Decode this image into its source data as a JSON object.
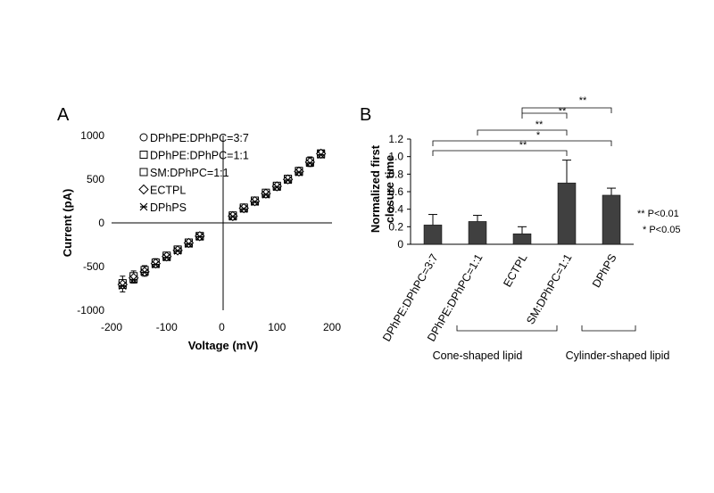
{
  "chart_data": [
    {
      "type": "scatter",
      "panel_label": "A",
      "xlabel": "Voltage (mV)",
      "ylabel": "Current (pA)",
      "xlim": [
        -200,
        200
      ],
      "ylim": [
        -1000,
        1000
      ],
      "xticks": [
        "-200",
        "-100",
        "0",
        "100",
        "200"
      ],
      "yticks": [
        "1000",
        "500",
        "0",
        "-500",
        "-1000"
      ],
      "legend_position": "top-left",
      "x": [
        -180,
        -160,
        -140,
        -120,
        -100,
        -80,
        -60,
        -40,
        20,
        40,
        60,
        80,
        100,
        120,
        140,
        160,
        180
      ],
      "series": [
        {
          "name": "DPhPE:DPhPC=3:7",
          "marker": "circle",
          "values": [
            -700,
            -620,
            -550,
            -460,
            -380,
            -310,
            -230,
            -150,
            80,
            170,
            250,
            340,
            420,
            500,
            590,
            700,
            790
          ],
          "error": [
            90,
            70,
            60,
            50,
            40,
            30,
            25,
            20,
            20,
            25,
            25,
            30,
            35,
            40,
            45,
            55,
            40
          ]
        },
        {
          "name": "DPhPE:DPhPC=1:1",
          "marker": "square",
          "values": [
            -710,
            -640,
            -555,
            -470,
            -390,
            -310,
            -235,
            -155,
            75,
            165,
            245,
            330,
            415,
            495,
            585,
            690,
            795
          ],
          "error": [
            0,
            0,
            0,
            0,
            0,
            0,
            0,
            0,
            0,
            0,
            0,
            0,
            0,
            0,
            0,
            0,
            0
          ]
        },
        {
          "name": "SM:DPhPC=1:1",
          "marker": "square",
          "values": [
            -690,
            -610,
            -540,
            -455,
            -375,
            -305,
            -225,
            -150,
            85,
            175,
            255,
            345,
            425,
            505,
            595,
            705,
            785
          ],
          "error": [
            0,
            0,
            0,
            0,
            0,
            0,
            0,
            0,
            0,
            0,
            0,
            0,
            0,
            0,
            0,
            0,
            0
          ]
        },
        {
          "name": "ECTPL",
          "marker": "diamond",
          "values": [
            -705,
            -630,
            -560,
            -465,
            -385,
            -315,
            -230,
            -152,
            78,
            168,
            248,
            335,
            418,
            498,
            588,
            695,
            792
          ],
          "error": [
            0,
            0,
            0,
            0,
            0,
            0,
            0,
            0,
            0,
            0,
            0,
            0,
            0,
            0,
            0,
            0,
            0
          ]
        },
        {
          "name": "DPhPS",
          "marker": "asterisk",
          "values": [
            -720,
            -650,
            -565,
            -475,
            -395,
            -320,
            -240,
            -158,
            72,
            160,
            240,
            325,
            410,
            490,
            580,
            685,
            780
          ],
          "error": [
            0,
            0,
            0,
            0,
            0,
            0,
            0,
            0,
            0,
            0,
            0,
            0,
            0,
            0,
            0,
            0,
            0
          ]
        }
      ]
    },
    {
      "type": "bar",
      "panel_label": "B",
      "ylabel_lines": [
        "Normalized first",
        "closure time"
      ],
      "ylim": [
        0,
        1.2
      ],
      "yticks": [
        "1.2",
        "1.0",
        "0.8",
        "0.6",
        "0.4",
        "0.2",
        "0"
      ],
      "categories": [
        "DPhPE:DPhPC=3:7",
        "DPhPE:DPhPC=1:1",
        "ECTPL",
        "SM:DPhPC=1:1",
        "DPhPS"
      ],
      "values": [
        0.22,
        0.26,
        0.12,
        0.7,
        0.56
      ],
      "errors": [
        0.12,
        0.07,
        0.08,
        0.26,
        0.08
      ],
      "bar_color": "#404040",
      "significance": [
        {
          "from": 0,
          "to": 3,
          "label": "**"
        },
        {
          "from": 0,
          "to": 4,
          "label": "*"
        },
        {
          "from": 1,
          "to": 3,
          "label": "**"
        },
        {
          "from": 2,
          "to": 3,
          "label": "**"
        },
        {
          "from": 2,
          "to": 4,
          "label": "**"
        }
      ],
      "significance_key": [
        "** P<0.01",
        "* P<0.05"
      ],
      "groups": [
        {
          "label": "Cone-shaped lipid",
          "from": 0,
          "to": 2
        },
        {
          "label": "Cylinder-shaped lipid",
          "from": 3,
          "to": 4
        }
      ]
    }
  ]
}
